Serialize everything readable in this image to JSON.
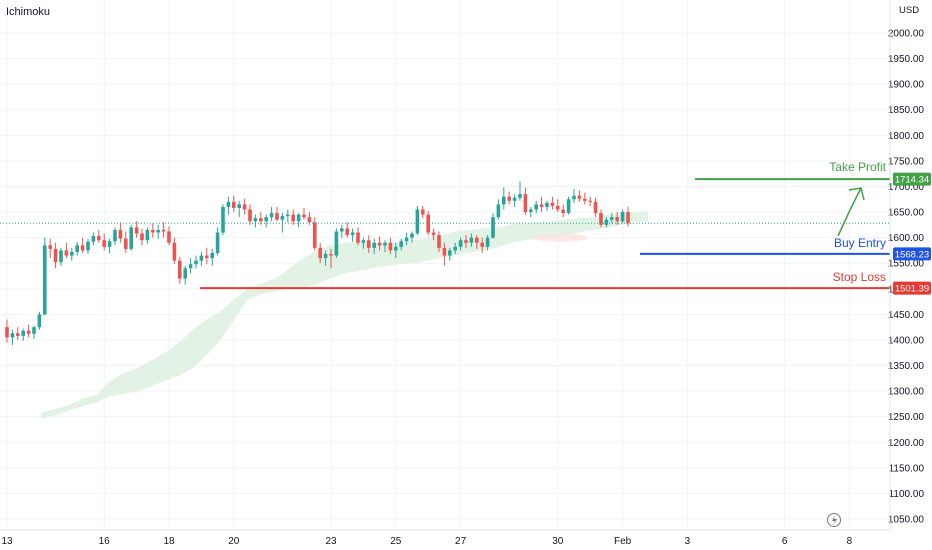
{
  "header": {
    "indicator_name": "Ichimoku",
    "currency": "USD"
  },
  "colors": {
    "bull": "#26a69a",
    "bear": "#ef5350",
    "take_profit": "#43a047",
    "buy_entry": "#1e53e5",
    "stop_loss": "#e53935",
    "cloud_bull": "#dff1e1",
    "cloud_bear": "#fde1e1"
  },
  "chart_data": {
    "type": "candlestick",
    "y_axis": {
      "ticks": [
        "2000.00",
        "1950.00",
        "1900.00",
        "1850.00",
        "1800.00",
        "1750.00",
        "1700.00",
        "1650.00",
        "1600.00",
        "1550.00",
        "1500.00",
        "1450.00",
        "1400.00",
        "1350.00",
        "1300.00",
        "1250.00",
        "1200.00",
        "1150.00",
        "1100.00",
        "1050.00"
      ],
      "range": [
        1040,
        2035
      ]
    },
    "x_axis": {
      "ticks": [
        {
          "label": "13",
          "index": 0
        },
        {
          "label": "16",
          "index": 18
        },
        {
          "label": "18",
          "index": 30
        },
        {
          "label": "20",
          "index": 42
        },
        {
          "label": "23",
          "index": 60
        },
        {
          "label": "25",
          "index": 72
        },
        {
          "label": "27",
          "index": 84
        },
        {
          "label": "30",
          "index": 102
        },
        {
          "label": "Feb",
          "index": 114
        },
        {
          "label": "3",
          "index": 126
        },
        {
          "label": "6",
          "index": 144
        },
        {
          "label": "8",
          "index": 156
        }
      ]
    },
    "candles": [
      [
        1425,
        1440,
        1395,
        1405
      ],
      [
        1405,
        1420,
        1390,
        1413
      ],
      [
        1413,
        1425,
        1400,
        1408
      ],
      [
        1408,
        1422,
        1398,
        1418
      ],
      [
        1418,
        1430,
        1405,
        1412
      ],
      [
        1412,
        1428,
        1402,
        1425
      ],
      [
        1425,
        1455,
        1420,
        1450
      ],
      [
        1450,
        1600,
        1448,
        1585
      ],
      [
        1585,
        1598,
        1560,
        1578
      ],
      [
        1578,
        1590,
        1540,
        1552
      ],
      [
        1552,
        1580,
        1545,
        1575
      ],
      [
        1575,
        1590,
        1560,
        1565
      ],
      [
        1565,
        1580,
        1555,
        1572
      ],
      [
        1572,
        1592,
        1565,
        1585
      ],
      [
        1585,
        1600,
        1570,
        1575
      ],
      [
        1575,
        1598,
        1568,
        1592
      ],
      [
        1592,
        1610,
        1585,
        1603
      ],
      [
        1603,
        1615,
        1590,
        1595
      ],
      [
        1595,
        1608,
        1575,
        1582
      ],
      [
        1582,
        1598,
        1570,
        1593
      ],
      [
        1593,
        1620,
        1585,
        1615
      ],
      [
        1615,
        1630,
        1590,
        1598
      ],
      [
        1598,
        1612,
        1570,
        1578
      ],
      [
        1578,
        1625,
        1575,
        1620
      ],
      [
        1620,
        1632,
        1600,
        1608
      ],
      [
        1608,
        1618,
        1585,
        1595
      ],
      [
        1595,
        1620,
        1588,
        1615
      ],
      [
        1615,
        1628,
        1600,
        1610
      ],
      [
        1610,
        1625,
        1598,
        1615
      ],
      [
        1615,
        1630,
        1600,
        1612
      ],
      [
        1612,
        1622,
        1585,
        1590
      ],
      [
        1590,
        1600,
        1548,
        1555
      ],
      [
        1555,
        1562,
        1510,
        1520
      ],
      [
        1520,
        1545,
        1508,
        1540
      ],
      [
        1540,
        1560,
        1530,
        1548
      ],
      [
        1548,
        1565,
        1540,
        1555
      ],
      [
        1555,
        1572,
        1545,
        1565
      ],
      [
        1565,
        1580,
        1548,
        1560
      ],
      [
        1560,
        1578,
        1545,
        1570
      ],
      [
        1570,
        1620,
        1565,
        1610
      ],
      [
        1610,
        1665,
        1605,
        1660
      ],
      [
        1660,
        1680,
        1645,
        1670
      ],
      [
        1670,
        1682,
        1650,
        1658
      ],
      [
        1658,
        1672,
        1640,
        1665
      ],
      [
        1665,
        1676,
        1645,
        1655
      ],
      [
        1655,
        1665,
        1625,
        1632
      ],
      [
        1632,
        1645,
        1620,
        1638
      ],
      [
        1638,
        1650,
        1625,
        1632
      ],
      [
        1632,
        1645,
        1620,
        1640
      ],
      [
        1640,
        1660,
        1632,
        1648
      ],
      [
        1648,
        1660,
        1632,
        1635
      ],
      [
        1635,
        1648,
        1610,
        1642
      ],
      [
        1642,
        1655,
        1630,
        1645
      ],
      [
        1645,
        1655,
        1625,
        1632
      ],
      [
        1632,
        1648,
        1620,
        1645
      ],
      [
        1645,
        1658,
        1635,
        1640
      ],
      [
        1640,
        1650,
        1625,
        1630
      ],
      [
        1630,
        1640,
        1575,
        1580
      ],
      [
        1580,
        1590,
        1550,
        1560
      ],
      [
        1560,
        1575,
        1545,
        1568
      ],
      [
        1568,
        1578,
        1540,
        1565
      ],
      [
        1565,
        1618,
        1560,
        1612
      ],
      [
        1612,
        1625,
        1600,
        1618
      ],
      [
        1618,
        1630,
        1600,
        1605
      ],
      [
        1605,
        1618,
        1592,
        1610
      ],
      [
        1610,
        1620,
        1585,
        1590
      ],
      [
        1590,
        1600,
        1578,
        1595
      ],
      [
        1595,
        1605,
        1570,
        1580
      ],
      [
        1580,
        1598,
        1568,
        1590
      ],
      [
        1590,
        1602,
        1575,
        1585
      ],
      [
        1585,
        1595,
        1572,
        1590
      ],
      [
        1590,
        1600,
        1568,
        1575
      ],
      [
        1575,
        1590,
        1560,
        1582
      ],
      [
        1582,
        1598,
        1575,
        1593
      ],
      [
        1593,
        1610,
        1585,
        1600
      ],
      [
        1600,
        1612,
        1590,
        1608
      ],
      [
        1608,
        1662,
        1605,
        1655
      ],
      [
        1655,
        1662,
        1638,
        1645
      ],
      [
        1645,
        1652,
        1605,
        1610
      ],
      [
        1610,
        1618,
        1595,
        1605
      ],
      [
        1605,
        1612,
        1572,
        1580
      ],
      [
        1580,
        1590,
        1545,
        1565
      ],
      [
        1565,
        1580,
        1555,
        1575
      ],
      [
        1575,
        1590,
        1568,
        1582
      ],
      [
        1582,
        1600,
        1575,
        1595
      ],
      [
        1595,
        1605,
        1580,
        1590
      ],
      [
        1590,
        1608,
        1582,
        1600
      ],
      [
        1600,
        1605,
        1578,
        1590
      ],
      [
        1590,
        1600,
        1570,
        1582
      ],
      [
        1582,
        1605,
        1575,
        1600
      ],
      [
        1600,
        1648,
        1598,
        1640
      ],
      [
        1640,
        1675,
        1635,
        1665
      ],
      [
        1665,
        1698,
        1655,
        1680
      ],
      [
        1680,
        1690,
        1665,
        1672
      ],
      [
        1672,
        1685,
        1660,
        1678
      ],
      [
        1678,
        1710,
        1672,
        1685
      ],
      [
        1685,
        1698,
        1645,
        1650
      ],
      [
        1650,
        1660,
        1640,
        1655
      ],
      [
        1655,
        1672,
        1648,
        1665
      ],
      [
        1665,
        1680,
        1650,
        1660
      ],
      [
        1660,
        1672,
        1652,
        1668
      ],
      [
        1668,
        1680,
        1655,
        1662
      ],
      [
        1662,
        1675,
        1650,
        1655
      ],
      [
        1655,
        1665,
        1640,
        1648
      ],
      [
        1648,
        1680,
        1645,
        1675
      ],
      [
        1675,
        1695,
        1668,
        1682
      ],
      [
        1682,
        1692,
        1670,
        1676
      ],
      [
        1676,
        1688,
        1665,
        1672
      ],
      [
        1672,
        1680,
        1662,
        1670
      ],
      [
        1670,
        1678,
        1640,
        1648
      ],
      [
        1648,
        1655,
        1620,
        1625
      ],
      [
        1625,
        1640,
        1620,
        1635
      ],
      [
        1635,
        1648,
        1628,
        1640
      ],
      [
        1640,
        1650,
        1625,
        1632
      ],
      [
        1632,
        1655,
        1628,
        1650
      ],
      [
        1650,
        1660,
        1622,
        1628
      ]
    ],
    "cloud": [
      [
        1245,
        1258
      ],
      [
        1252,
        1265
      ],
      [
        1262,
        1272
      ],
      [
        1270,
        1285
      ],
      [
        1278,
        1292
      ],
      [
        1290,
        1320
      ],
      [
        1295,
        1335
      ],
      [
        1300,
        1345
      ],
      [
        1310,
        1360
      ],
      [
        1320,
        1375
      ],
      [
        1330,
        1395
      ],
      [
        1345,
        1420
      ],
      [
        1370,
        1440
      ],
      [
        1400,
        1455
      ],
      [
        1440,
        1480
      ],
      [
        1480,
        1500
      ],
      [
        1490,
        1510
      ],
      [
        1495,
        1520
      ],
      [
        1500,
        1540
      ],
      [
        1500,
        1560
      ],
      [
        1510,
        1575
      ],
      [
        1520,
        1585
      ],
      [
        1530,
        1590
      ],
      [
        1535,
        1592
      ],
      [
        1540,
        1590
      ],
      [
        1545,
        1588
      ],
      [
        1548,
        1590
      ],
      [
        1550,
        1595
      ],
      [
        1555,
        1600
      ],
      [
        1560,
        1605
      ],
      [
        1565,
        1612
      ],
      [
        1570,
        1615
      ],
      [
        1575,
        1618
      ],
      [
        1580,
        1620
      ],
      [
        1590,
        1625
      ],
      [
        1595,
        1628
      ],
      [
        1598,
        1630
      ],
      [
        1600,
        1632
      ],
      [
        1605,
        1635
      ],
      [
        1610,
        1638
      ],
      [
        1615,
        1640
      ],
      [
        1620,
        1645
      ],
      [
        1625,
        1648
      ],
      [
        1630,
        1650
      ],
      [
        1632,
        1652
      ]
    ],
    "levels": [
      {
        "name": "Take Profit",
        "value": 1714.34,
        "tag": "1714.34"
      },
      {
        "name": "Buy Entry",
        "value": 1568.23,
        "tag": "1568.23"
      },
      {
        "name": "Stop Loss",
        "value": 1501.39,
        "tag": "1501.39"
      }
    ],
    "current_price": 1628,
    "grid": true
  }
}
